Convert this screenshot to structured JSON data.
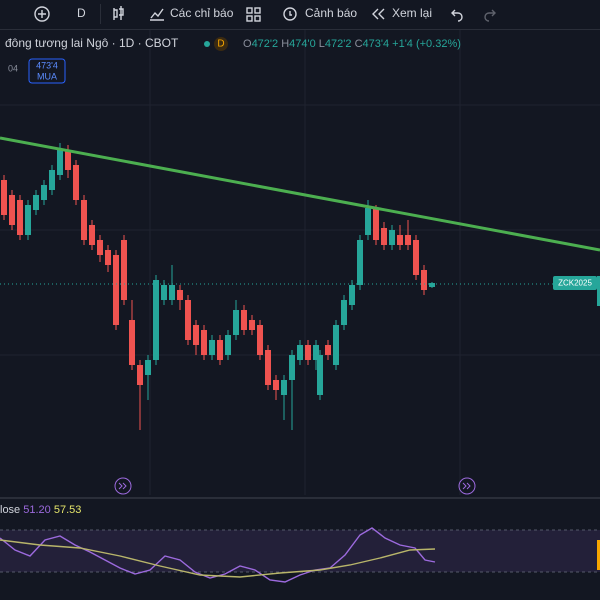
{
  "toolbar": {
    "interval": "D",
    "indicators": "Các chỉ báo",
    "alerts": "Cảnh báo",
    "replay": "Xem lại"
  },
  "legend": {
    "symbol": "đông tương lai Ngô · 1D · CBOT",
    "badge": "D",
    "open_label": "O",
    "open": "472'2",
    "high_label": "H",
    "high": "474'0",
    "low_label": "L",
    "low": "472'2",
    "close_label": "C",
    "close": "473'4",
    "change": "+1'4 (+0.32%)"
  },
  "order": {
    "price": "473'4",
    "side": "MUA",
    "qty": "04"
  },
  "price_label": "ZCK2025",
  "indicator": {
    "name": "lose",
    "value1": "51.20",
    "value2": "57.53"
  }
}
